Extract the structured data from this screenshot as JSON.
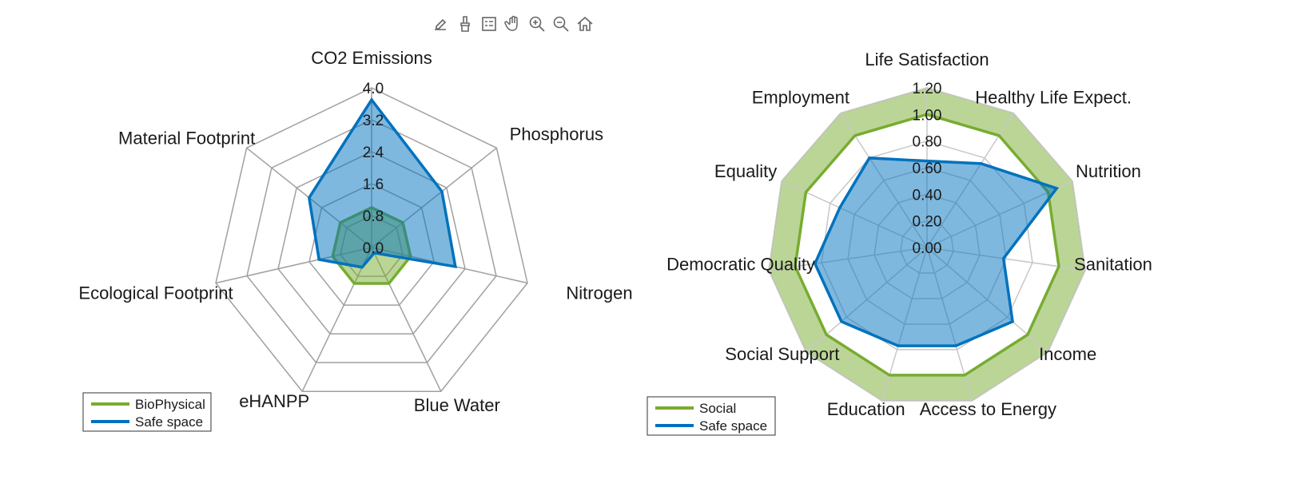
{
  "toolbar": {
    "buttons": [
      {
        "icon": "edit-data-tips-icon",
        "name": "data-tips-button"
      },
      {
        "icon": "brush-icon",
        "name": "brush-button"
      },
      {
        "icon": "legend-list-icon",
        "name": "legend-button"
      },
      {
        "icon": "pan-hand-icon",
        "name": "pan-button"
      },
      {
        "icon": "zoom-in-icon",
        "name": "zoom-in-button"
      },
      {
        "icon": "zoom-out-icon",
        "name": "zoom-out-button"
      },
      {
        "icon": "home-icon",
        "name": "restore-view-button"
      }
    ]
  },
  "colors": {
    "green": "#77ac30",
    "blue": "#0072bd",
    "grid": "#a0a0a0"
  },
  "chart_data": [
    {
      "type": "radar",
      "axes": [
        "CO2 Emissions",
        "Phosphorus",
        "Nitrogen",
        "Blue Water",
        "eHANPP",
        "Ecological Footprint",
        "Material Footprint"
      ],
      "tick_labels": [
        "4.0",
        "3.2",
        "2.4",
        "1.6",
        "0.8",
        "0.0"
      ],
      "rlim": [
        0,
        4
      ],
      "series": [
        {
          "name": "BioPhysical",
          "values": [
            1.0,
            1.0,
            1.0,
            1.0,
            1.0,
            1.0,
            1.0
          ]
        },
        {
          "name": "Safe space",
          "values": [
            3.7,
            2.25,
            2.15,
            0.15,
            0.55,
            1.35,
            2.0
          ]
        }
      ],
      "legend": {
        "position": "bottom-left",
        "entries": [
          "BioPhysical",
          "Safe space"
        ]
      }
    },
    {
      "type": "radar",
      "axes": [
        "Life Satisfaction",
        "Healthy Life Expect.",
        "Nutrition",
        "Sanitation",
        "Income",
        "Access to Energy",
        "Education",
        "Social Support",
        "Democratic Quality",
        "Equality",
        "Employment"
      ],
      "tick_labels": [
        "1.20",
        "1.00",
        "0.80",
        "0.60",
        "0.40",
        "0.20",
        "0.00"
      ],
      "rlim": [
        0,
        1.2
      ],
      "band": {
        "inner": 1.0,
        "outer": 1.2
      },
      "series": [
        {
          "name": "Social",
          "values": [
            1.0,
            1.0,
            1.0,
            1.0,
            1.0,
            1.0,
            1.0,
            1.0,
            1.0,
            1.0,
            1.0
          ]
        },
        {
          "name": "Safe space",
          "values": [
            0.65,
            0.75,
            1.07,
            0.58,
            0.85,
            0.77,
            0.77,
            0.85,
            0.85,
            0.72,
            0.8
          ]
        }
      ],
      "legend": {
        "position": "bottom-left",
        "entries": [
          "Social",
          "Safe space"
        ]
      }
    }
  ]
}
